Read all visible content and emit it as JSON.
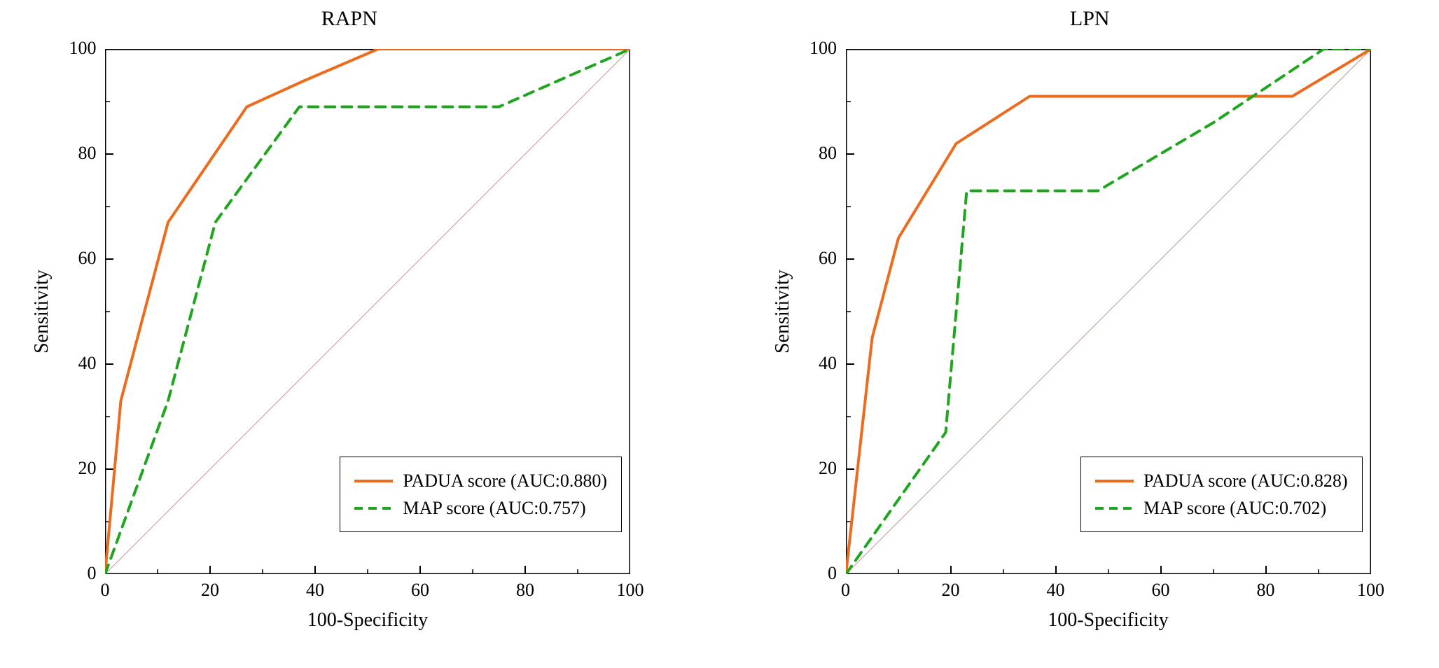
{
  "figure": {
    "background_color": "#ffffff",
    "font_family": "Times New Roman",
    "panel_layout": "1x2"
  },
  "axes_common": {
    "xlabel": "100-Specificity",
    "ylabel": "Sensitivity",
    "xlim": [
      0,
      100
    ],
    "ylim": [
      0,
      100
    ],
    "xtick_step": 20,
    "ytick_step": 20,
    "tick_minor": 10,
    "axis_color": "#000000",
    "tick_fontsize": 26,
    "label_fontsize": 28,
    "title_fontsize": 30,
    "diagonal": {
      "x": [
        0,
        100
      ],
      "y": [
        0,
        100
      ],
      "color": "#c99",
      "width": 1
    }
  },
  "panels": [
    {
      "id": "rapn",
      "title": "RAPN",
      "series": [
        {
          "name": "PADUA score",
          "auc": "0.880",
          "legend": "PADUA score (AUC:0.880)",
          "color": "#ed6b1c",
          "style": "solid",
          "width": 4,
          "x": [
            0,
            2,
            3,
            12,
            27,
            38,
            52,
            100
          ],
          "y": [
            0,
            22,
            33,
            67,
            89,
            94,
            100,
            100
          ]
        },
        {
          "name": "MAP score",
          "auc": "0.757",
          "legend": "MAP score (AUC:0.757)",
          "color": "#1fa61f",
          "style": "dashed",
          "dash": "14,10",
          "width": 4,
          "x": [
            0,
            4,
            12,
            21,
            37,
            75,
            100
          ],
          "y": [
            0,
            11,
            33,
            67,
            89,
            89,
            100
          ]
        }
      ]
    },
    {
      "id": "lpn",
      "title": "LPN",
      "series": [
        {
          "name": "PADUA score",
          "auc": "0.828",
          "legend": "PADUA score (AUC:0.828)",
          "color": "#ed6b1c",
          "style": "solid",
          "width": 4,
          "x": [
            0,
            2,
            5,
            10,
            21,
            35,
            85,
            100
          ],
          "y": [
            0,
            18,
            45,
            64,
            82,
            91,
            91,
            100
          ]
        },
        {
          "name": "MAP score",
          "auc": "0.702",
          "legend": "MAP score (AUC:0.702)",
          "color": "#1fa61f",
          "style": "dashed",
          "dash": "14,10",
          "width": 4,
          "x": [
            0,
            19,
            23,
            48,
            70,
            91,
            100
          ],
          "y": [
            0,
            27,
            73,
            73,
            86,
            100,
            100
          ]
        }
      ]
    }
  ],
  "legend": {
    "position": "lower-right",
    "border_color": "#000000",
    "bg_color": "#ffffff",
    "fontsize": 26
  }
}
